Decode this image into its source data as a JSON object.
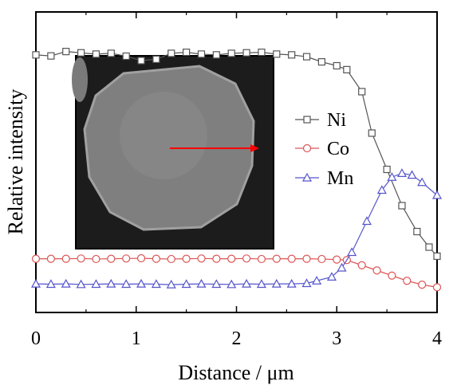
{
  "chart_data": {
    "type": "line",
    "title": "",
    "xlabel": "Distance / μm",
    "ylabel": "Relative intensity",
    "xlim": [
      0,
      4
    ],
    "ylim": [
      0,
      1
    ],
    "xticks": [
      "0",
      "1",
      "2",
      "3",
      "4"
    ],
    "y_tick_labels": false,
    "grid": false,
    "legend_position": "right, inside plot",
    "inset": "grayscale micrograph of a single particle with a red arrow indicating the line-scan direction",
    "inset_arrow_color": "#ff0000",
    "series": [
      {
        "name": "Ni",
        "marker": "square",
        "color": "#555555",
        "x": [
          0,
          0.15,
          0.3,
          0.45,
          0.6,
          0.75,
          0.9,
          1.05,
          1.2,
          1.35,
          1.5,
          1.65,
          1.8,
          1.95,
          2.1,
          2.25,
          2.4,
          2.55,
          2.7,
          2.85,
          3.0,
          3.1,
          3.25,
          3.35,
          3.5,
          3.65,
          3.8,
          3.92,
          4.0
        ],
        "y": [
          0.942,
          0.938,
          0.955,
          0.95,
          0.945,
          0.948,
          0.937,
          0.92,
          0.925,
          0.948,
          0.952,
          0.945,
          0.942,
          0.948,
          0.95,
          0.952,
          0.945,
          0.942,
          0.935,
          0.915,
          0.9,
          0.885,
          0.8,
          0.64,
          0.5,
          0.36,
          0.26,
          0.2,
          0.165
        ]
      },
      {
        "name": "Co",
        "marker": "circle",
        "color": "#dd5555",
        "x": [
          0,
          0.15,
          0.3,
          0.45,
          0.6,
          0.75,
          0.9,
          1.05,
          1.2,
          1.35,
          1.5,
          1.65,
          1.8,
          1.95,
          2.1,
          2.25,
          2.4,
          2.55,
          2.7,
          2.85,
          3.0,
          3.1,
          3.25,
          3.4,
          3.55,
          3.7,
          3.85,
          4.0
        ],
        "y": [
          0.155,
          0.155,
          0.155,
          0.156,
          0.154,
          0.155,
          0.156,
          0.157,
          0.155,
          0.154,
          0.155,
          0.156,
          0.155,
          0.155,
          0.156,
          0.154,
          0.155,
          0.155,
          0.155,
          0.154,
          0.152,
          0.15,
          0.13,
          0.11,
          0.09,
          0.07,
          0.055,
          0.045
        ]
      },
      {
        "name": "Mn",
        "marker": "triangle",
        "color": "#5555cc",
        "x": [
          0,
          0.15,
          0.3,
          0.45,
          0.6,
          0.75,
          0.9,
          1.05,
          1.2,
          1.35,
          1.5,
          1.65,
          1.8,
          1.95,
          2.1,
          2.25,
          2.4,
          2.55,
          2.7,
          2.8,
          2.95,
          3.05,
          3.15,
          3.3,
          3.45,
          3.55,
          3.65,
          3.75,
          3.85,
          4.0
        ],
        "y": [
          0.058,
          0.057,
          0.058,
          0.056,
          0.057,
          0.058,
          0.057,
          0.058,
          0.057,
          0.055,
          0.057,
          0.058,
          0.057,
          0.056,
          0.058,
          0.057,
          0.058,
          0.058,
          0.06,
          0.07,
          0.085,
          0.12,
          0.18,
          0.3,
          0.42,
          0.47,
          0.485,
          0.478,
          0.45,
          0.4
        ]
      }
    ]
  }
}
